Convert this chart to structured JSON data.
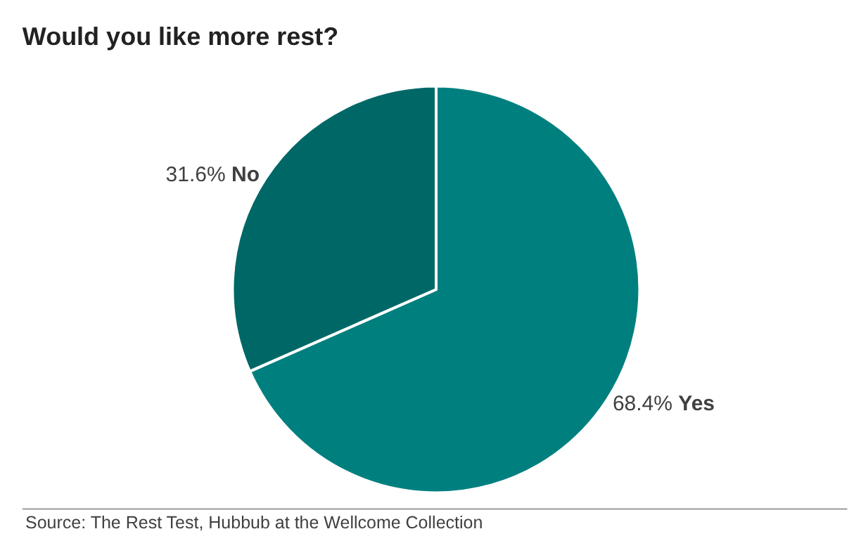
{
  "chart_data": {
    "type": "pie",
    "title": "Would you like more rest?",
    "categories": [
      "Yes",
      "No"
    ],
    "values": [
      68.4,
      31.6
    ],
    "value_labels": [
      "68.4%",
      "31.6%"
    ],
    "colors": [
      "#007f7f",
      "#006767"
    ],
    "legend": false,
    "annotations": [
      "Source: The Rest Test, Hubbub at the Wellcome Collection"
    ]
  }
}
